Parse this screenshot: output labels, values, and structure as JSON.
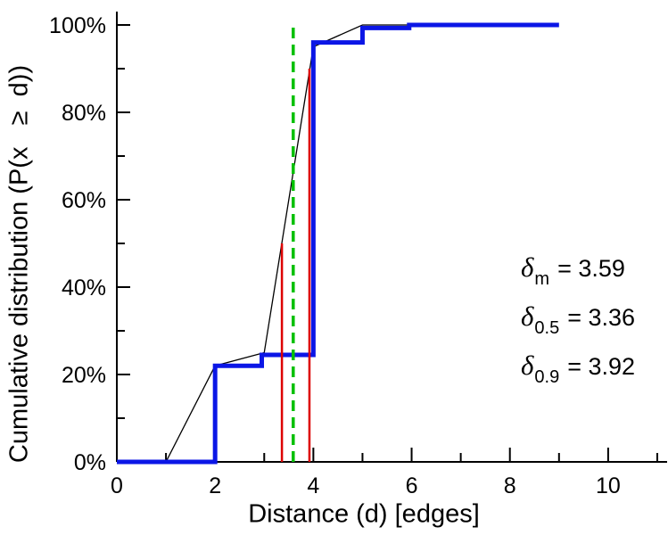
{
  "chart_data": {
    "type": "line",
    "title": "",
    "xlabel": "Distance (d) [edges]",
    "ylabel": "Cumulative distribution (P(x   ≥  d))",
    "xlim": [
      0,
      11.2
    ],
    "ylim": [
      0,
      100
    ],
    "grid": false,
    "legend": "none",
    "x_major_ticks": [
      0,
      2,
      4,
      6,
      8,
      10
    ],
    "x_tick_labels": [
      "0",
      "2",
      "4",
      "6",
      "8",
      "10"
    ],
    "x_minor_ticks": [
      1,
      3,
      5,
      7,
      9,
      11
    ],
    "y_major_ticks": [
      0,
      20,
      40,
      60,
      80,
      100
    ],
    "y_tick_labels": [
      "0%",
      "20%",
      "40%",
      "60%",
      "80%",
      "100%"
    ],
    "y_minor_ticks": [
      10,
      30,
      50,
      70,
      90
    ],
    "series": [
      {
        "name": "interpolated-cdf-line",
        "color": "#000000",
        "width": 1.3,
        "style": "solid",
        "points": [
          [
            1,
            0
          ],
          [
            2,
            22
          ],
          [
            3,
            25
          ],
          [
            4,
            95
          ],
          [
            5,
            100
          ],
          [
            6,
            100
          ]
        ]
      },
      {
        "name": "empirical-cdf-step",
        "color": "#0b16e6",
        "width": 5,
        "style": "step",
        "points": [
          [
            0,
            0
          ],
          [
            2,
            0
          ],
          [
            2,
            22
          ],
          [
            2.95,
            22
          ],
          [
            2.95,
            24.5
          ],
          [
            4,
            24.5
          ],
          [
            4,
            96
          ],
          [
            5,
            96
          ],
          [
            5,
            99.3
          ],
          [
            5.95,
            99.3
          ],
          [
            5.95,
            100
          ],
          [
            9,
            100
          ]
        ]
      }
    ],
    "vlines": [
      {
        "name": "median-vline",
        "x": 3.36,
        "y0": 0,
        "y1": 50,
        "color": "#dd0000",
        "width": 2.5,
        "dash": ""
      },
      {
        "name": "p90-vline",
        "x": 3.92,
        "y0": 0,
        "y1": 90,
        "color": "#dd0000",
        "width": 2.5,
        "dash": ""
      },
      {
        "name": "mean-vline",
        "x": 3.59,
        "y0": 0,
        "y1": 100,
        "color": "#00c000",
        "width": 3.5,
        "dash": "12,7"
      }
    ],
    "statistics": {
      "delta_m": 3.59,
      "delta_05": 3.36,
      "delta_09": 3.92
    },
    "annotations": [
      {
        "symbol": "δ",
        "subscript": "m",
        "text": "= 3.59"
      },
      {
        "symbol": "δ",
        "subscript": "0.5",
        "text": "= 3.36"
      },
      {
        "symbol": "δ",
        "subscript": "0.9",
        "text": "= 3.92"
      }
    ]
  }
}
